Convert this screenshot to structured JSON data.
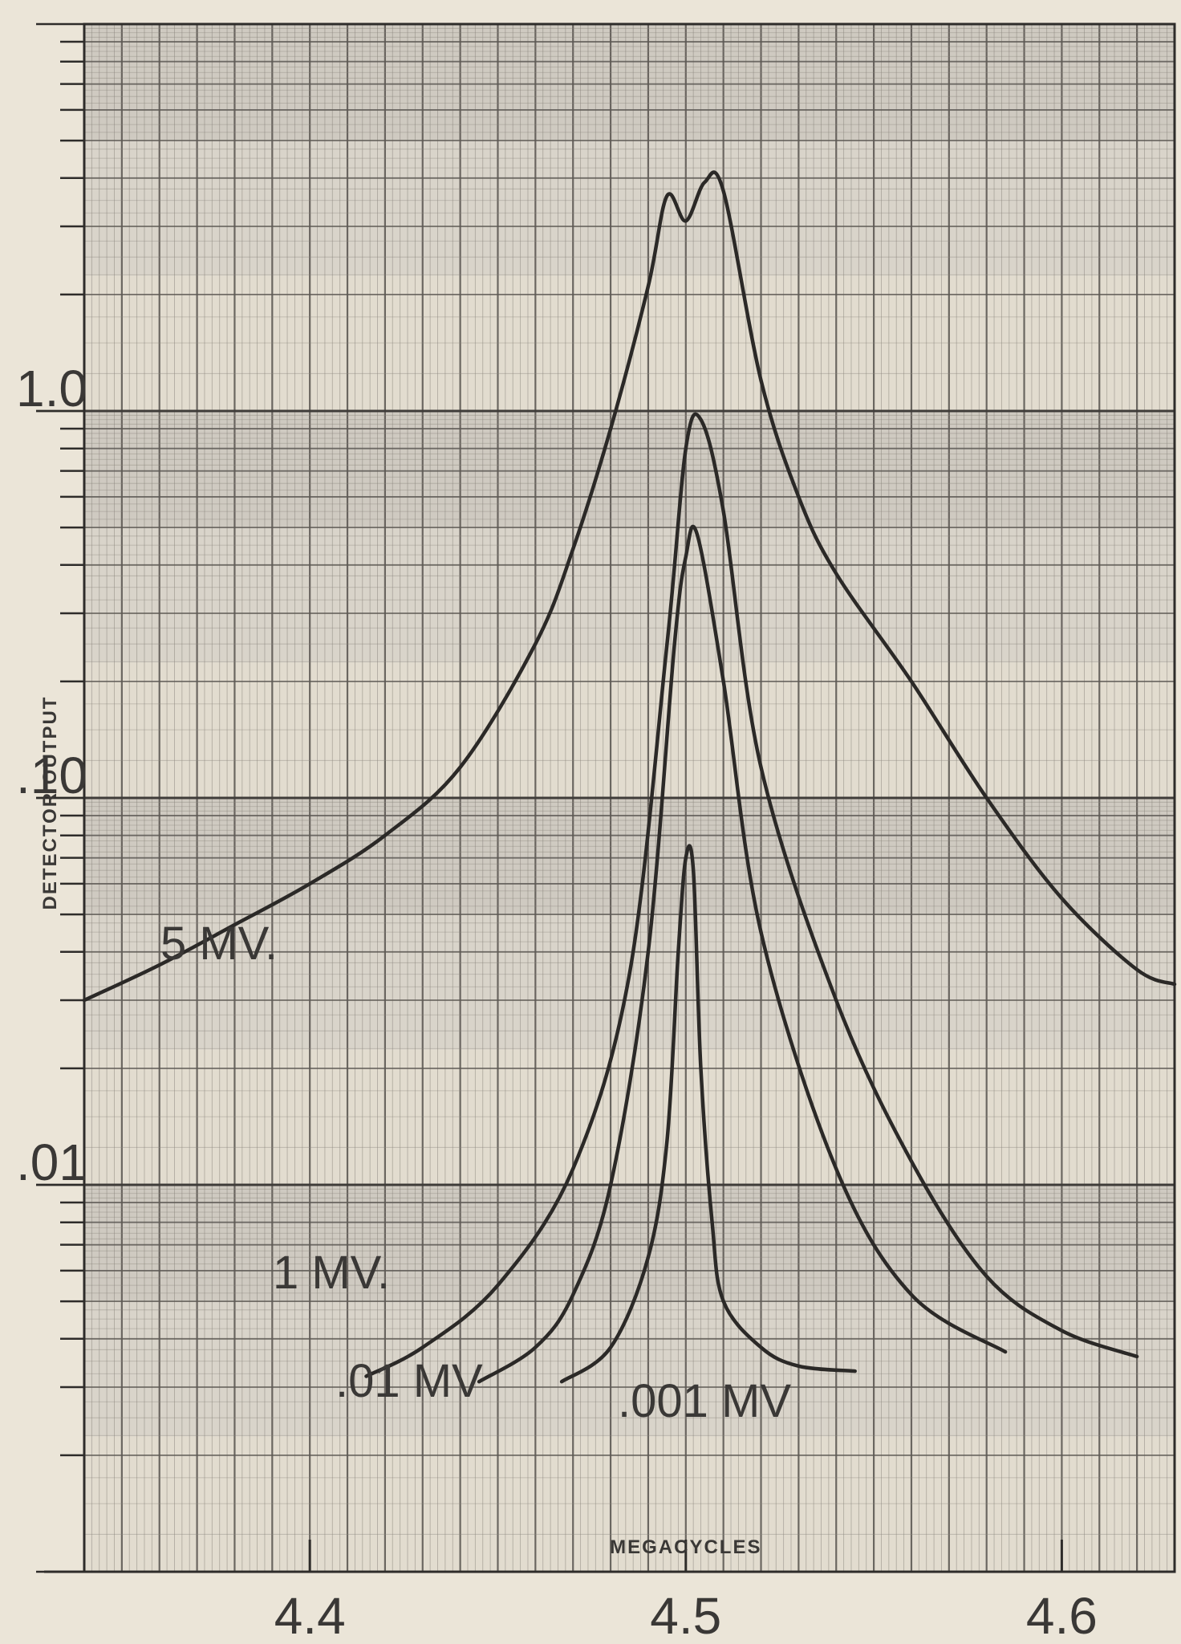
{
  "chart_data": {
    "type": "line",
    "title": "",
    "xlabel": "MEGACYCLES",
    "ylabel": "DETECTOR OUTPUT",
    "xscale": "linear",
    "yscale": "log",
    "xlim": [
      4.34,
      4.63
    ],
    "ylim": [
      0.001,
      10
    ],
    "grid": true,
    "x_ticks": [
      "4.4",
      "4.5",
      "4.6"
    ],
    "y_ticks": [
      "1.0",
      ".10",
      ".01"
    ],
    "series": [
      {
        "name": "5 MV.",
        "x": [
          4.34,
          4.36,
          4.38,
          4.4,
          4.42,
          4.44,
          4.46,
          4.47,
          4.48,
          4.49,
          4.495,
          4.5,
          4.505,
          4.51,
          4.52,
          4.53,
          4.54,
          4.56,
          4.58,
          4.6,
          4.62,
          4.63
        ],
        "y": [
          0.03,
          0.037,
          0.047,
          0.06,
          0.08,
          0.12,
          0.25,
          0.44,
          0.9,
          2.1,
          3.6,
          3.1,
          3.9,
          3.7,
          1.2,
          0.6,
          0.38,
          0.2,
          0.1,
          0.055,
          0.036,
          0.033
        ]
      },
      {
        "name": "1 MV.",
        "x": [
          4.415,
          4.43,
          4.45,
          4.47,
          4.485,
          4.495,
          4.5,
          4.504,
          4.51,
          4.52,
          4.54,
          4.56,
          4.58,
          4.6,
          4.62
        ],
        "y": [
          0.0032,
          0.0038,
          0.0055,
          0.011,
          0.035,
          0.25,
          0.8,
          0.95,
          0.55,
          0.12,
          0.03,
          0.0115,
          0.0058,
          0.0042,
          0.0036
        ]
      },
      {
        "name": ".01 MV",
        "x": [
          4.445,
          4.46,
          4.47,
          4.48,
          4.49,
          4.497,
          4.5,
          4.503,
          4.51,
          4.52,
          4.54,
          4.56,
          4.585
        ],
        "y": [
          0.0031,
          0.0038,
          0.0052,
          0.01,
          0.04,
          0.25,
          0.42,
          0.48,
          0.2,
          0.045,
          0.011,
          0.0052,
          0.0037
        ]
      },
      {
        "name": ".001 MV",
        "x": [
          4.467,
          4.48,
          4.49,
          4.495,
          4.498,
          4.5,
          4.502,
          4.504,
          4.507,
          4.51,
          4.52,
          4.53,
          4.545
        ],
        "y": [
          0.0031,
          0.0038,
          0.0065,
          0.013,
          0.04,
          0.07,
          0.065,
          0.02,
          0.008,
          0.005,
          0.0038,
          0.0034,
          0.0033
        ]
      }
    ]
  }
}
